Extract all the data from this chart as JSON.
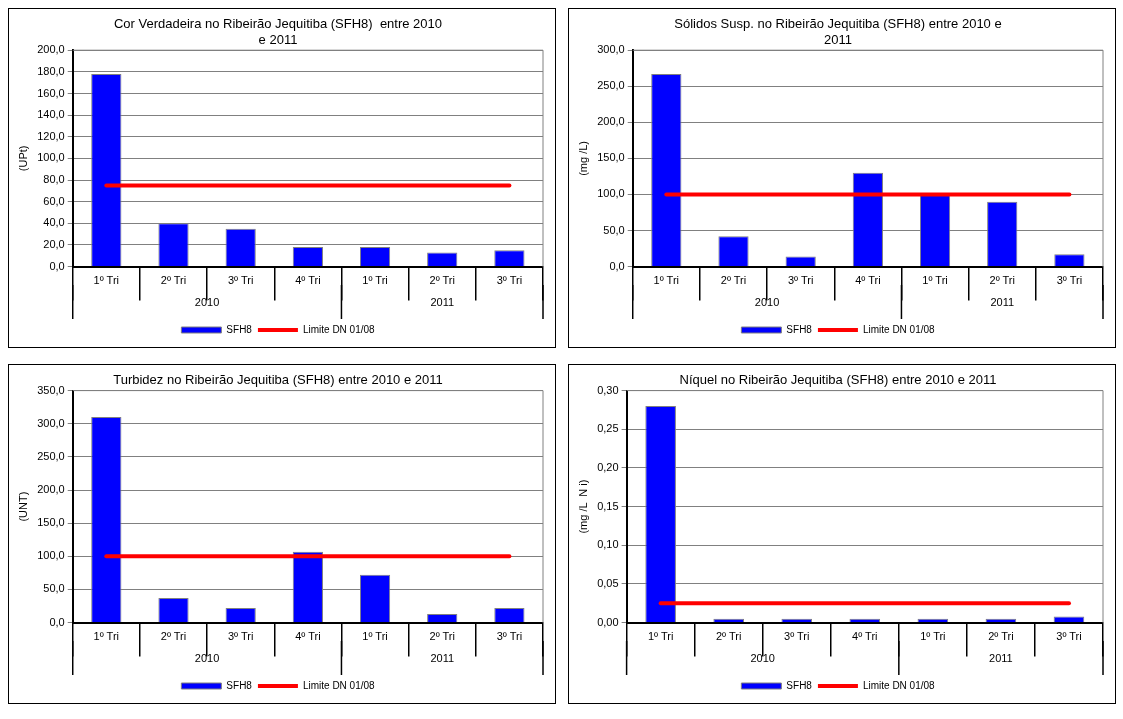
{
  "chart_data": [
    {
      "type": "bar",
      "title": "Cor Verdadeira no Ribeirão Jequitiba (SFH8)  entre 2010 e 2011",
      "ylabel": "(UPt)",
      "categories": [
        "1º Tri",
        "2º Tri",
        "3º Tri",
        "4º Tri",
        "1º Tri",
        "2º Tri",
        "3º Tri"
      ],
      "series": [
        {
          "name": "SFH8",
          "color": "#0000ff",
          "values": [
            178,
            40,
            35,
            18,
            18,
            13,
            15
          ]
        },
        {
          "name": "Limite DN 01/08",
          "type": "line",
          "color": "#ff0000",
          "values": [
            75,
            75,
            75,
            75,
            75,
            75,
            75
          ]
        }
      ],
      "ylim": [
        0,
        200
      ],
      "yticks": [
        {
          "value": 0,
          "label": "0,0"
        },
        {
          "value": 20,
          "label": "20,0"
        },
        {
          "value": 40,
          "label": "40,0"
        },
        {
          "value": 60,
          "label": "60,0"
        },
        {
          "value": 80,
          "label": "80,0"
        },
        {
          "value": 100,
          "label": "100,0"
        },
        {
          "value": 120,
          "label": "120,0"
        },
        {
          "value": 140,
          "label": "140,0"
        },
        {
          "value": 160,
          "label": "160,0"
        },
        {
          "value": 180,
          "label": "180,0"
        },
        {
          "value": 200,
          "label": "200,0"
        }
      ],
      "grid": "y",
      "legend": "bottom",
      "annotations": [
        "2010",
        "2011"
      ]
    },
    {
      "type": "bar",
      "title": "Sólidos Susp. no Ribeirão Jequitiba (SFH8) entre 2010 e 2011",
      "ylabel": "(mg /L)",
      "categories": [
        "1º Tri",
        "2º Tri",
        "3º Tri",
        "4º Tri",
        "1º Tri",
        "2º Tri",
        "3º Tri"
      ],
      "series": [
        {
          "name": "SFH8",
          "color": "#0000ff",
          "values": [
            267,
            42,
            14,
            130,
            100,
            90,
            17
          ]
        },
        {
          "name": "Limite DN 01/08",
          "type": "line",
          "color": "#ff0000",
          "values": [
            100,
            100,
            100,
            100,
            100,
            100,
            100
          ]
        }
      ],
      "ylim": [
        0,
        300
      ],
      "yticks": [
        {
          "value": 0,
          "label": "0,0"
        },
        {
          "value": 50,
          "label": "50,0"
        },
        {
          "value": 100,
          "label": "100,0"
        },
        {
          "value": 150,
          "label": "150,0"
        },
        {
          "value": 200,
          "label": "200,0"
        },
        {
          "value": 250,
          "label": "250,0"
        },
        {
          "value": 300,
          "label": "300,0"
        }
      ],
      "grid": "y",
      "legend": "bottom",
      "annotations": [
        "2010",
        "2011"
      ]
    },
    {
      "type": "bar",
      "title": "Turbidez no Ribeirão Jequitiba (SFH8) entre 2010 e 2011",
      "ylabel": "(UNT)",
      "categories": [
        "1º Tri",
        "2º Tri",
        "3º Tri",
        "4º Tri",
        "1º Tri",
        "2º Tri",
        "3º Tri"
      ],
      "series": [
        {
          "name": "SFH8",
          "color": "#0000ff",
          "values": [
            310,
            37,
            22,
            107,
            72,
            13,
            22
          ]
        },
        {
          "name": "Limite DN 01/08",
          "type": "line",
          "color": "#ff0000",
          "values": [
            100,
            100,
            100,
            100,
            100,
            100,
            100
          ]
        }
      ],
      "ylim": [
        0,
        350
      ],
      "yticks": [
        {
          "value": 0,
          "label": "0,0"
        },
        {
          "value": 50,
          "label": "50,0"
        },
        {
          "value": 100,
          "label": "100,0"
        },
        {
          "value": 150,
          "label": "150,0"
        },
        {
          "value": 200,
          "label": "200,0"
        },
        {
          "value": 250,
          "label": "250,0"
        },
        {
          "value": 300,
          "label": "300,0"
        },
        {
          "value": 350,
          "label": "350,0"
        }
      ],
      "grid": "y",
      "legend": "bottom",
      "annotations": [
        "2010",
        "2011"
      ]
    },
    {
      "type": "bar",
      "title": "Níquel no Ribeirão Jequitiba (SFH8) entre 2010 e 2011",
      "ylabel": "(mg /L  N i)",
      "categories": [
        "1º Tri",
        "2º Tri",
        "3º Tri",
        "4º Tri",
        "1º Tri",
        "2º Tri",
        "3º Tri"
      ],
      "series": [
        {
          "name": "SFH8",
          "color": "#0000ff",
          "values": [
            0.28,
            0.005,
            0.005,
            0.005,
            0.005,
            0.005,
            0.008
          ]
        },
        {
          "name": "Limite DN 01/08",
          "type": "line",
          "color": "#ff0000",
          "values": [
            0.025,
            0.025,
            0.025,
            0.025,
            0.025,
            0.025,
            0.025
          ]
        }
      ],
      "ylim": [
        0,
        0.3
      ],
      "yticks": [
        {
          "value": 0,
          "label": "0,00"
        },
        {
          "value": 0.05,
          "label": "0,05"
        },
        {
          "value": 0.1,
          "label": "0,10"
        },
        {
          "value": 0.15,
          "label": "0,15"
        },
        {
          "value": 0.2,
          "label": "0,20"
        },
        {
          "value": 0.25,
          "label": "0,25"
        },
        {
          "value": 0.3,
          "label": "0,30"
        }
      ],
      "grid": "y",
      "legend": "bottom",
      "annotations": [
        "2010",
        "2011"
      ]
    }
  ]
}
